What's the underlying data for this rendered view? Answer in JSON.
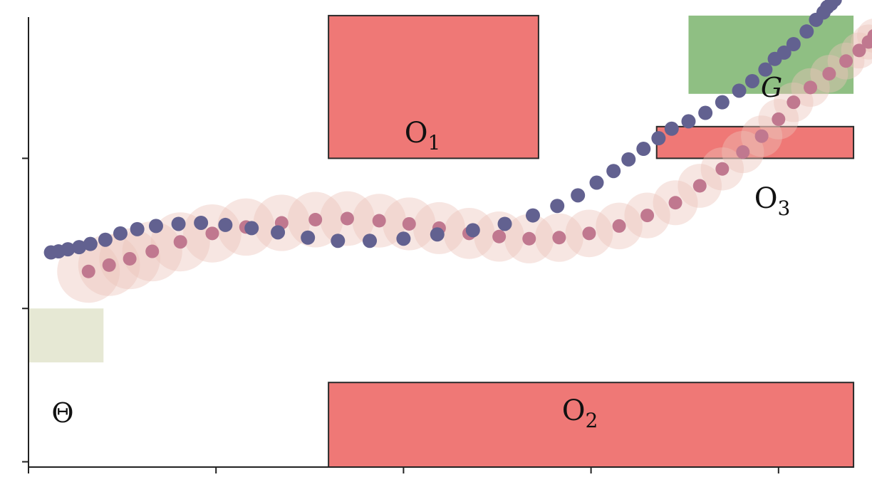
{
  "labels": {
    "obstacle_1": {
      "base": "O",
      "sub": "1"
    },
    "obstacle_2": {
      "base": "O",
      "sub": "2"
    },
    "obstacle_3": {
      "base": "O",
      "sub": "3"
    },
    "goal": "G",
    "start": "Θ"
  },
  "colors": {
    "obstacle": "#ef7876",
    "goal": "#8fbf83",
    "start": "#e6e8d4",
    "uncertainty": "#ecc3bb",
    "trajectory_mean": "#c0788f",
    "trajectory_sample": "#626190"
  },
  "chart_data": {
    "type": "scatter",
    "title": "",
    "xlabel": "",
    "ylabel": "",
    "x_tick_labels": [
      "",
      "",
      "",
      "",
      ""
    ],
    "y_tick_labels": [
      "",
      "",
      ""
    ],
    "grid": false,
    "series": [
      {
        "points": [
          [
            0.32,
            1.85
          ],
          [
            0.43,
            1.91
          ],
          [
            0.54,
            1.97
          ],
          [
            0.66,
            2.04
          ],
          [
            0.81,
            2.13
          ],
          [
            0.98,
            2.21
          ],
          [
            1.16,
            2.27
          ],
          [
            1.35,
            2.31
          ],
          [
            1.53,
            2.34
          ],
          [
            1.7,
            2.35
          ],
          [
            1.87,
            2.33
          ],
          [
            2.03,
            2.3
          ],
          [
            2.19,
            2.26
          ],
          [
            2.35,
            2.21
          ],
          [
            2.51,
            2.18
          ],
          [
            2.67,
            2.16
          ],
          [
            2.83,
            2.17
          ],
          [
            2.99,
            2.21
          ],
          [
            3.15,
            2.28
          ],
          [
            3.3,
            2.38
          ],
          [
            3.45,
            2.5
          ],
          [
            3.58,
            2.66
          ],
          [
            3.7,
            2.82
          ],
          [
            3.81,
            2.98
          ],
          [
            3.91,
            3.13
          ],
          [
            4.0,
            3.29
          ],
          [
            4.08,
            3.45
          ],
          [
            4.17,
            3.59
          ],
          [
            4.27,
            3.72
          ],
          [
            4.36,
            3.84
          ],
          [
            4.43,
            3.94
          ],
          [
            4.48,
            4.02
          ],
          [
            4.51,
            4.08
          ]
        ]
      },
      {
        "points": [
          [
            0.12,
            2.03
          ],
          [
            0.16,
            2.04
          ],
          [
            0.21,
            2.06
          ],
          [
            0.27,
            2.08
          ],
          [
            0.33,
            2.11
          ],
          [
            0.41,
            2.15
          ],
          [
            0.49,
            2.21
          ],
          [
            0.58,
            2.25
          ],
          [
            0.68,
            2.28
          ],
          [
            0.8,
            2.3
          ],
          [
            0.92,
            2.31
          ],
          [
            1.05,
            2.29
          ],
          [
            1.19,
            2.26
          ],
          [
            1.33,
            2.22
          ],
          [
            1.49,
            2.17
          ],
          [
            1.65,
            2.14
          ],
          [
            1.82,
            2.14
          ],
          [
            2.0,
            2.16
          ],
          [
            2.18,
            2.2
          ],
          [
            2.37,
            2.24
          ],
          [
            2.54,
            2.3
          ],
          [
            2.69,
            2.38
          ],
          [
            2.82,
            2.47
          ],
          [
            2.93,
            2.57
          ],
          [
            3.03,
            2.69
          ],
          [
            3.12,
            2.8
          ],
          [
            3.2,
            2.91
          ],
          [
            3.28,
            3.01
          ],
          [
            3.36,
            3.11
          ],
          [
            3.43,
            3.2
          ],
          [
            3.52,
            3.27
          ],
          [
            3.61,
            3.35
          ],
          [
            3.7,
            3.45
          ],
          [
            3.79,
            3.56
          ],
          [
            3.86,
            3.65
          ],
          [
            3.93,
            3.76
          ],
          [
            3.98,
            3.86
          ],
          [
            4.03,
            3.92
          ],
          [
            4.08,
            4.0
          ],
          [
            4.15,
            4.12
          ],
          [
            4.2,
            4.23
          ],
          [
            4.24,
            4.3
          ],
          [
            4.26,
            4.35
          ],
          [
            4.28,
            4.38
          ],
          [
            4.3,
            4.42
          ]
        ]
      }
    ],
    "regions": [
      {
        "label": "O1",
        "x": [
          1.6,
          2.72
        ],
        "y": [
          2.92,
          4.27
        ]
      },
      {
        "label": "O2",
        "x": [
          1.6,
          4.4
        ],
        "y": [
          0.0,
          0.8
        ]
      },
      {
        "label": "O3",
        "x": [
          3.35,
          4.4
        ],
        "y": [
          2.92,
          3.22
        ]
      },
      {
        "label": "G",
        "x": [
          3.52,
          4.4
        ],
        "y": [
          3.53,
          4.27
        ]
      },
      {
        "label": "Θ",
        "x": [
          0.0,
          0.4
        ],
        "y": [
          0.99,
          1.5
        ]
      }
    ]
  }
}
